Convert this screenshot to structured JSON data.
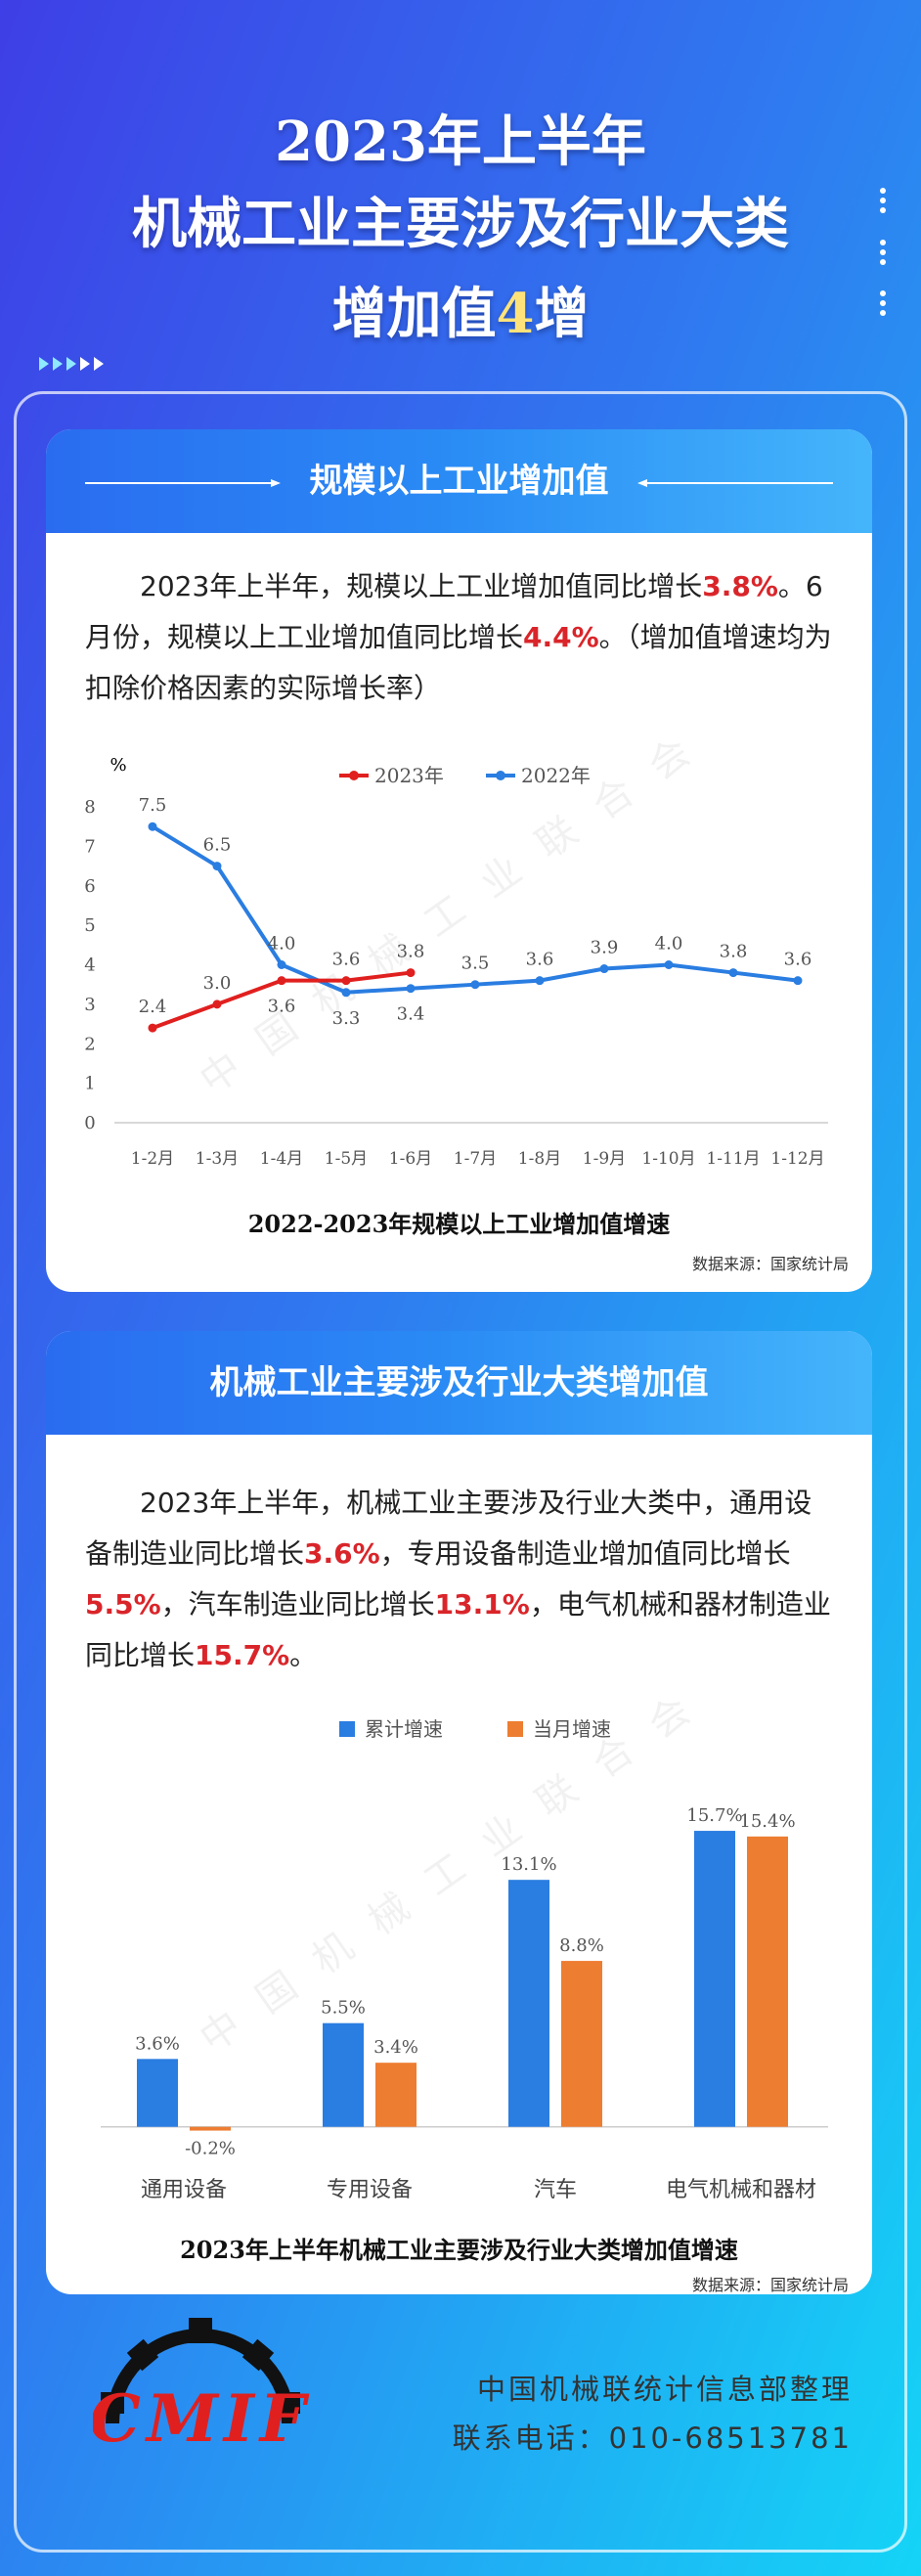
{
  "header": {
    "title_lines": [
      [
        {
          "text": "2023年上半年"
        }
      ],
      [
        {
          "text": "机械工业主要涉及行业大类"
        }
      ],
      [
        {
          "text": "增加值"
        },
        {
          "text": "4",
          "color": "#ffe37a"
        },
        {
          "text": "增"
        }
      ]
    ]
  },
  "sections": [
    {
      "title": "规模以上工业增加值",
      "paragraph": [
        {
          "text": "2023年上半年，规模以上工业增加值同比增长"
        },
        {
          "text": "3.8%",
          "color": "#d9252a"
        },
        {
          "text": "。6月份，规模以上工业增加值同比增长"
        },
        {
          "text": "4.4%",
          "color": "#d9252a"
        },
        {
          "text": "。（增加值增速均为扣除价格因素的实际增长率）"
        }
      ]
    },
    {
      "title": "机械工业主要涉及行业大类增加值",
      "paragraph": [
        {
          "text": "2023年上半年，机械工业主要涉及行业大类中，通用设备制造业同比增长"
        },
        {
          "text": "3.6%",
          "color": "#d9252a"
        },
        {
          "text": "，专用设备制造业增加值同比增长"
        },
        {
          "text": "5.5%",
          "color": "#d9252a"
        },
        {
          "text": "，汽车制造业同比增长"
        },
        {
          "text": "13.1%",
          "color": "#d9252a"
        },
        {
          "text": "，电气机械和器材制造业同比增长"
        },
        {
          "text": "15.7%",
          "color": "#d9252a"
        },
        {
          "text": "。"
        }
      ]
    }
  ],
  "chart_data": [
    {
      "type": "line",
      "title": "2022-2023年规模以上工业增加值增速",
      "source": "数据来源：国家统计局",
      "y_label": "%",
      "categories": [
        "1-2月",
        "1-3月",
        "1-4月",
        "1-5月",
        "1-6月",
        "1-7月",
        "1-8月",
        "1-9月",
        "1-10月",
        "1-11月",
        "1-12月"
      ],
      "series": [
        {
          "name": "2023年",
          "color": "#e0201f",
          "values": [
            2.4,
            3.0,
            3.6,
            3.6,
            3.8,
            null,
            null,
            null,
            null,
            null,
            null
          ],
          "value_labels": [
            "2.4",
            "3.0",
            "3.6",
            "3.6",
            "3.8",
            null,
            null,
            null,
            null,
            null,
            null
          ]
        },
        {
          "name": "2022年",
          "color": "#2a7de1",
          "values": [
            7.5,
            6.5,
            4.0,
            3.3,
            3.4,
            3.5,
            3.6,
            3.9,
            4.0,
            3.8,
            3.6
          ],
          "value_labels": [
            "7.5",
            "6.5",
            "4.0",
            "3.3",
            "3.4",
            "3.5",
            "3.6",
            "3.9",
            "4.0",
            "3.8",
            "3.6"
          ]
        }
      ],
      "ylim": [
        0,
        8
      ],
      "yticks": [
        0,
        1,
        2,
        3,
        4,
        5,
        6,
        7,
        8
      ],
      "grid": false
    },
    {
      "type": "bar",
      "title": "2023年上半年机械工业主要涉及行业大类增加值增速",
      "source": "数据来源：国家统计局",
      "categories": [
        "通用设备",
        "专用设备",
        "汽车",
        "电气机械和器材"
      ],
      "series": [
        {
          "name": "累计增速",
          "color": "#2a7de1",
          "values": [
            3.6,
            5.5,
            13.1,
            15.7
          ],
          "value_labels": [
            "3.6%",
            "5.5%",
            "13.1%",
            "15.7%"
          ]
        },
        {
          "name": "当月增速",
          "color": "#ed7d31",
          "values": [
            -0.2,
            3.4,
            8.8,
            15.4
          ],
          "value_labels": [
            "-0.2%",
            "3.4%",
            "8.8%",
            "15.4%"
          ]
        }
      ],
      "ylim": [
        -1,
        17
      ]
    }
  ],
  "watermark": "中国机械工业联合会",
  "footer": {
    "logo": "CMIF",
    "lines": [
      "中国机械联统计信息部整理",
      "联系电话：010-68513781"
    ]
  }
}
